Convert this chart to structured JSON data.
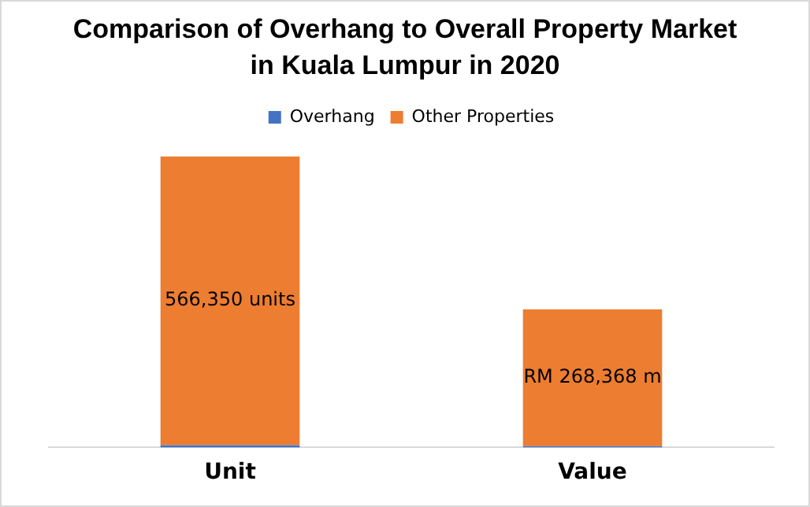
{
  "chart_data": {
    "type": "bar",
    "title": "Comparison of Overhang to Overall Property Market in Kuala Lumpur in 2020",
    "categories": [
      "Unit",
      "Value"
    ],
    "stacked": true,
    "legend": "top",
    "grid": false,
    "series": [
      {
        "name": "Overhang",
        "color": "#4472c4",
        "values": [
          4500,
          2500
        ]
      },
      {
        "name": "Other Properties",
        "color": "#ed7d31",
        "values": [
          566350,
          268368
        ],
        "value_labels": [
          "566,350 units",
          "RM 268,368 m"
        ]
      }
    ]
  }
}
